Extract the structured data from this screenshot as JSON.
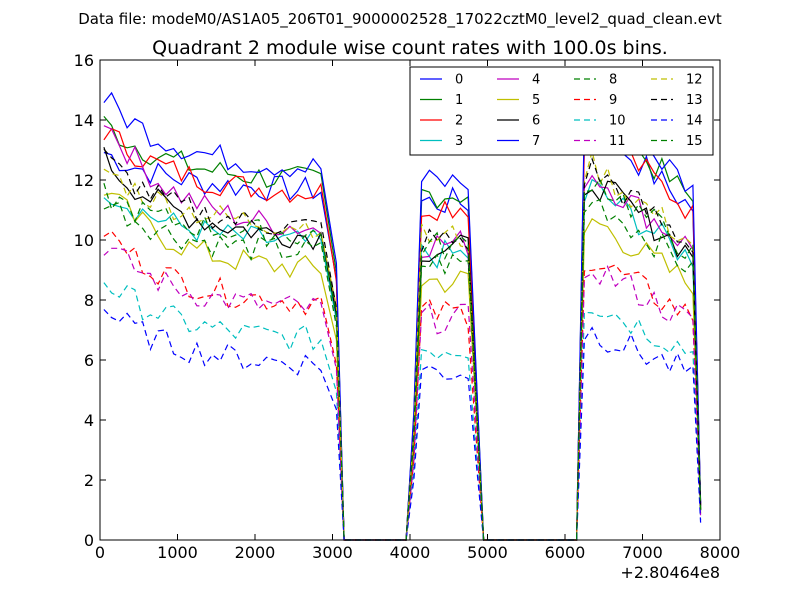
{
  "chart_data": {
    "type": "line",
    "suptitle": "Data file: modeM0/AS1A05_206T01_9000002528_17022cztM0_level2_quad_clean.evt",
    "title": "Quadrant 2 module wise count rates with 100.0s bins.",
    "xlabel": "",
    "ylabel": "",
    "x_offset_label": "+2.80464e8",
    "xlim": [
      0,
      8000
    ],
    "ylim": [
      0,
      16
    ],
    "xticks": [
      0,
      1000,
      2000,
      3000,
      4000,
      5000,
      6000,
      7000,
      8000
    ],
    "yticks": [
      0,
      2,
      4,
      6,
      8,
      10,
      12,
      14,
      16
    ],
    "grid": false,
    "legend": {
      "placement": "top-right",
      "columns": 4
    },
    "segments": [
      {
        "start": 50,
        "step": 100,
        "count": 29
      },
      {
        "start": 3050,
        "step": 100,
        "count": 3,
        "values_fixed": [
          null,
          0,
          0
        ]
      },
      {
        "start": 3950,
        "step": 100,
        "count": 9
      },
      {
        "start": 4950,
        "step": 100,
        "count": 12
      },
      {
        "start": 6150,
        "step": 100,
        "count": 17
      }
    ],
    "series": [
      {
        "name": "0",
        "color": "#0000ff",
        "dash": "solid",
        "base": 11.6,
        "gap_start": 13.0
      },
      {
        "name": "1",
        "color": "#008000",
        "dash": "solid",
        "base": 11.9,
        "gap_start": 14.0
      },
      {
        "name": "2",
        "color": "#ff0000",
        "dash": "solid",
        "base": 11.5,
        "gap_start": 13.8
      },
      {
        "name": "3",
        "color": "#00bfbf",
        "dash": "solid",
        "base": 9.8,
        "gap_start": 11.9
      },
      {
        "name": "4",
        "color": "#bf00bf",
        "dash": "solid",
        "base": 10.2,
        "gap_start": 14.3
      },
      {
        "name": "5",
        "color": "#bfbf00",
        "dash": "solid",
        "base": 8.9,
        "gap_start": 11.9
      },
      {
        "name": "6",
        "color": "#000000",
        "dash": "solid",
        "base": 10.0,
        "gap_start": 12.9
      },
      {
        "name": "7",
        "color": "#0000ff",
        "dash": "solid",
        "base": 12.3,
        "gap_start": 14.9
      },
      {
        "name": "8",
        "color": "#008000",
        "dash": "dashed",
        "base": 9.5,
        "gap_start": 11.5
      },
      {
        "name": "9",
        "color": "#ff0000",
        "dash": "dashed",
        "base": 7.8,
        "gap_start": 10.5
      },
      {
        "name": "10",
        "color": "#00bfbf",
        "dash": "dashed",
        "base": 6.6,
        "gap_start": 8.8
      },
      {
        "name": "11",
        "color": "#bf00bf",
        "dash": "dashed",
        "base": 7.6,
        "gap_start": 10.0
      },
      {
        "name": "12",
        "color": "#bfbf00",
        "dash": "dashed",
        "base": 10.4,
        "gap_start": 12.5
      },
      {
        "name": "13",
        "color": "#000000",
        "dash": "dashed",
        "base": 10.3,
        "gap_start": 12.9
      },
      {
        "name": "14",
        "color": "#0000ff",
        "dash": "dashed",
        "base": 5.8,
        "gap_start": 7.8
      },
      {
        "name": "15",
        "color": "#008000",
        "dash": "dashed",
        "base": 10.1,
        "gap_start": 11.6
      }
    ]
  }
}
